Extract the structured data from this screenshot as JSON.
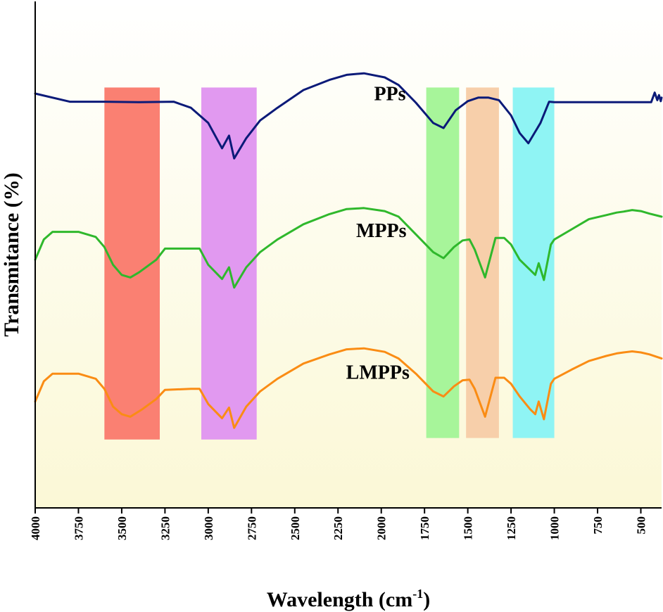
{
  "chart_data": {
    "type": "line",
    "title": "",
    "xlabel": "Wavelength (cm",
    "xlabel_sup": "-1",
    "xlabel_close": ")",
    "ylabel": "Transmitance (%)",
    "xlim": [
      4000,
      380
    ],
    "x_ticks": [
      4000,
      3750,
      3500,
      3250,
      3000,
      2750,
      2500,
      2250,
      2000,
      1750,
      1500,
      1250,
      1000,
      750,
      500
    ],
    "x_tick_labels": [
      "4000",
      "3750",
      "3500",
      "3250",
      "3000",
      "2750",
      "2500",
      "2250",
      "2000",
      "1750",
      "1500",
      "1250",
      "1000",
      "750",
      "500"
    ],
    "ylim": [
      0,
      100
    ],
    "y_ticks_shown": false,
    "background_gradient": {
      "top": "#ffffff",
      "bottom": "#fbf8d6"
    },
    "highlight_bands": [
      {
        "x_range": [
          3600,
          3280
        ],
        "color": "#fa8072",
        "y_range": [
          13.5,
          83
        ]
      },
      {
        "x_range": [
          3040,
          2720
        ],
        "color": "#e199f0",
        "y_range": [
          13.5,
          83
        ]
      },
      {
        "x_range": [
          1740,
          1550
        ],
        "color": "#a7f59a",
        "y_range": [
          13.8,
          83
        ]
      },
      {
        "x_range": [
          1510,
          1320
        ],
        "color": "#f7cfaa",
        "y_range": [
          13.8,
          83
        ]
      },
      {
        "x_range": [
          1240,
          1000
        ],
        "color": "#8ff4f4",
        "y_range": [
          13.8,
          83
        ]
      }
    ],
    "series": [
      {
        "name": "PPs",
        "color": "#0b1a78",
        "label_pos": [
          1950,
          80.5
        ],
        "points": [
          [
            4000,
            81.8
          ],
          [
            3800,
            80.2
          ],
          [
            3600,
            80.2
          ],
          [
            3400,
            80.1
          ],
          [
            3200,
            80.2
          ],
          [
            3100,
            79
          ],
          [
            3000,
            76
          ],
          [
            2920,
            71
          ],
          [
            2880,
            73.5
          ],
          [
            2850,
            69
          ],
          [
            2780,
            73
          ],
          [
            2700,
            76.5
          ],
          [
            2600,
            79
          ],
          [
            2450,
            82.5
          ],
          [
            2300,
            84.5
          ],
          [
            2200,
            85.5
          ],
          [
            2100,
            85.8
          ],
          [
            1980,
            85
          ],
          [
            1900,
            83.5
          ],
          [
            1800,
            80
          ],
          [
            1700,
            76
          ],
          [
            1640,
            75
          ],
          [
            1570,
            78.5
          ],
          [
            1500,
            80.3
          ],
          [
            1440,
            81
          ],
          [
            1380,
            81
          ],
          [
            1320,
            80.5
          ],
          [
            1250,
            77.5
          ],
          [
            1200,
            74
          ],
          [
            1150,
            72
          ],
          [
            1080,
            76
          ],
          [
            1030,
            80.2
          ],
          [
            1000,
            80.1
          ],
          [
            900,
            80.1
          ],
          [
            800,
            80.1
          ],
          [
            700,
            80.1
          ],
          [
            560,
            80.1
          ],
          [
            440,
            80.1
          ],
          [
            420,
            82
          ],
          [
            405,
            80.5
          ],
          [
            395,
            81.5
          ],
          [
            385,
            80.3
          ],
          [
            380,
            81
          ]
        ]
      },
      {
        "name": "MPPs",
        "color": "#2fb82c",
        "label_pos": [
          2000,
          53.5
        ],
        "points": [
          [
            4000,
            49
          ],
          [
            3950,
            53
          ],
          [
            3900,
            54.5
          ],
          [
            3750,
            54.5
          ],
          [
            3650,
            53.5
          ],
          [
            3600,
            51.5
          ],
          [
            3550,
            48
          ],
          [
            3500,
            46
          ],
          [
            3450,
            45.5
          ],
          [
            3400,
            46.5
          ],
          [
            3300,
            49
          ],
          [
            3250,
            51.2
          ],
          [
            3100,
            51.2
          ],
          [
            3050,
            51.2
          ],
          [
            3000,
            48
          ],
          [
            2920,
            45.2
          ],
          [
            2880,
            47.5
          ],
          [
            2850,
            43.5
          ],
          [
            2780,
            47.5
          ],
          [
            2700,
            50.5
          ],
          [
            2600,
            53
          ],
          [
            2450,
            56
          ],
          [
            2300,
            58
          ],
          [
            2200,
            59
          ],
          [
            2100,
            59.2
          ],
          [
            1980,
            58.6
          ],
          [
            1900,
            57.5
          ],
          [
            1800,
            54
          ],
          [
            1700,
            50.5
          ],
          [
            1640,
            49.3
          ],
          [
            1580,
            51.5
          ],
          [
            1530,
            52.8
          ],
          [
            1490,
            53
          ],
          [
            1460,
            51
          ],
          [
            1400,
            45.5
          ],
          [
            1340,
            53.3
          ],
          [
            1290,
            53.3
          ],
          [
            1250,
            52
          ],
          [
            1200,
            49
          ],
          [
            1140,
            47
          ],
          [
            1110,
            46
          ],
          [
            1090,
            48.3
          ],
          [
            1060,
            45
          ],
          [
            1020,
            52
          ],
          [
            1000,
            53
          ],
          [
            900,
            55
          ],
          [
            800,
            57
          ],
          [
            700,
            57.8
          ],
          [
            640,
            58.3
          ],
          [
            600,
            58.5
          ],
          [
            550,
            58.8
          ],
          [
            500,
            58.6
          ],
          [
            450,
            58.1
          ],
          [
            380,
            57.5
          ]
        ]
      },
      {
        "name": "LMPPs",
        "color": "#fa8c14",
        "label_pos": [
          2020,
          25.5
        ],
        "points": [
          [
            4000,
            21
          ],
          [
            3950,
            25
          ],
          [
            3900,
            26.5
          ],
          [
            3750,
            26.5
          ],
          [
            3650,
            25.5
          ],
          [
            3600,
            23.5
          ],
          [
            3550,
            20
          ],
          [
            3500,
            18.5
          ],
          [
            3450,
            18
          ],
          [
            3380,
            19.5
          ],
          [
            3300,
            21.5
          ],
          [
            3250,
            23.3
          ],
          [
            3100,
            23.5
          ],
          [
            3050,
            23.5
          ],
          [
            3000,
            20.5
          ],
          [
            2920,
            17.7
          ],
          [
            2880,
            19.8
          ],
          [
            2850,
            15.8
          ],
          [
            2780,
            20
          ],
          [
            2700,
            23
          ],
          [
            2600,
            25.5
          ],
          [
            2450,
            28.5
          ],
          [
            2300,
            30.3
          ],
          [
            2200,
            31.3
          ],
          [
            2100,
            31.5
          ],
          [
            1980,
            30.8
          ],
          [
            1900,
            29.5
          ],
          [
            1800,
            26.5
          ],
          [
            1700,
            23
          ],
          [
            1640,
            22
          ],
          [
            1580,
            24
          ],
          [
            1530,
            25.2
          ],
          [
            1490,
            25.3
          ],
          [
            1460,
            23.5
          ],
          [
            1400,
            18
          ],
          [
            1340,
            25.7
          ],
          [
            1290,
            25.7
          ],
          [
            1250,
            24.5
          ],
          [
            1200,
            22
          ],
          [
            1140,
            19.5
          ],
          [
            1110,
            18.5
          ],
          [
            1090,
            21
          ],
          [
            1060,
            17.5
          ],
          [
            1020,
            24.5
          ],
          [
            1000,
            25.5
          ],
          [
            900,
            27.3
          ],
          [
            800,
            29
          ],
          [
            700,
            30
          ],
          [
            640,
            30.5
          ],
          [
            600,
            30.7
          ],
          [
            550,
            30.9
          ],
          [
            500,
            30.7
          ],
          [
            450,
            30.3
          ],
          [
            380,
            29.5
          ]
        ]
      }
    ]
  }
}
